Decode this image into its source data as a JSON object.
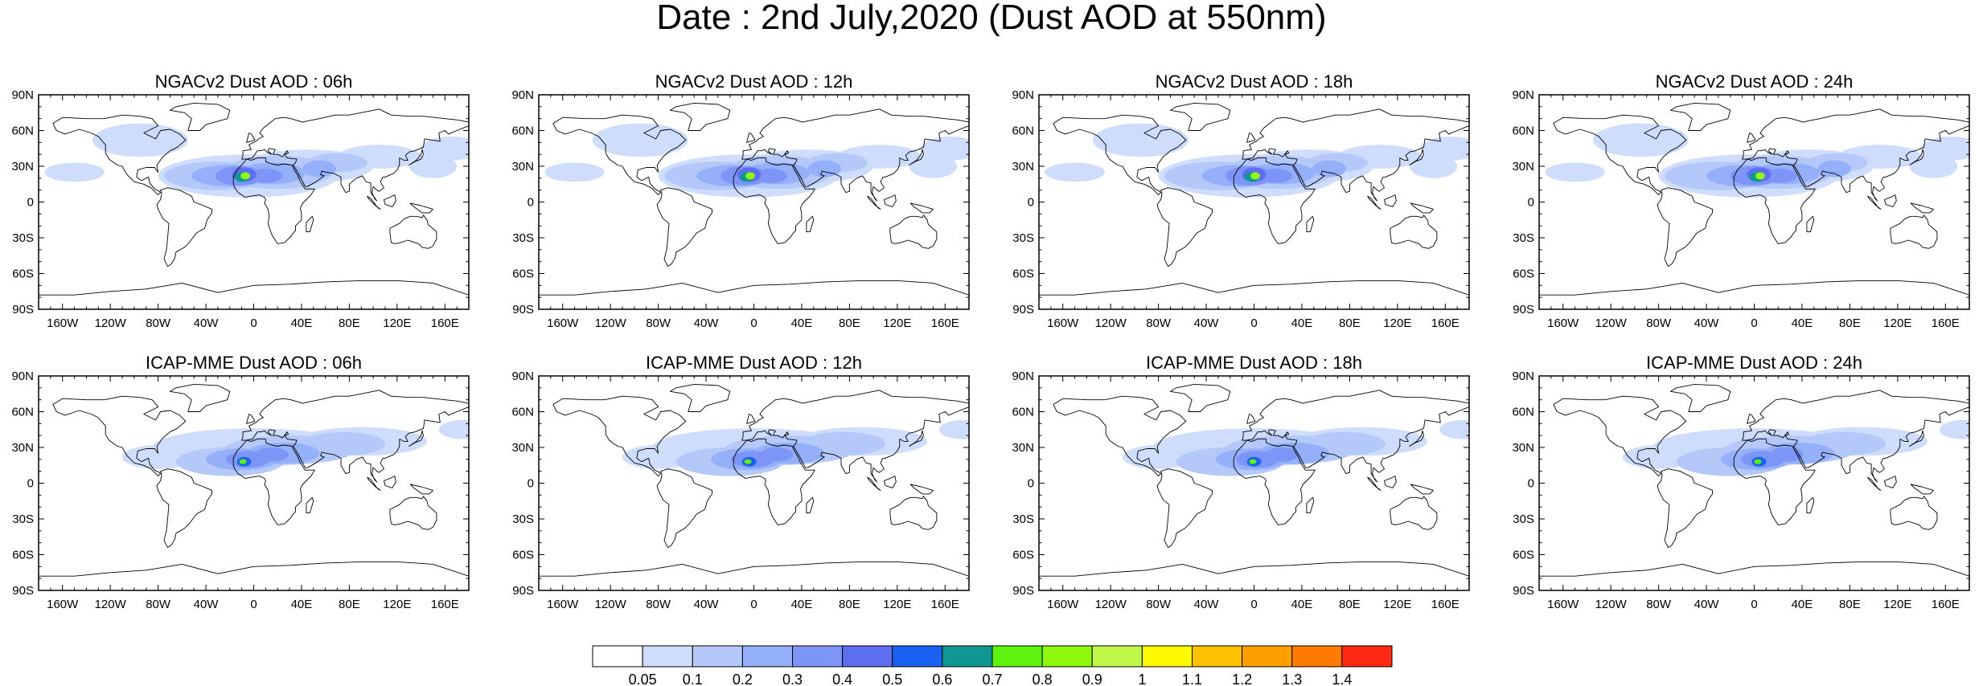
{
  "title": "Date : 2nd July,2020 (Dust AOD at 550nm)",
  "panels": [
    {
      "title": "NGACv2 Dust AOD : 06h",
      "model": "NGACv2",
      "hour": "06h",
      "variant": 0
    },
    {
      "title": "NGACv2 Dust AOD : 12h",
      "model": "NGACv2",
      "hour": "12h",
      "variant": 1
    },
    {
      "title": "NGACv2 Dust AOD : 18h",
      "model": "NGACv2",
      "hour": "18h",
      "variant": 2
    },
    {
      "title": "NGACv2 Dust AOD : 24h",
      "model": "NGACv2",
      "hour": "24h",
      "variant": 3
    },
    {
      "title": "ICAP-MME Dust AOD : 06h",
      "model": "ICAP-MME",
      "hour": "06h",
      "variant": 0
    },
    {
      "title": "ICAP-MME Dust AOD : 12h",
      "model": "ICAP-MME",
      "hour": "12h",
      "variant": 1
    },
    {
      "title": "ICAP-MME Dust AOD : 18h",
      "model": "ICAP-MME",
      "hour": "18h",
      "variant": 2
    },
    {
      "title": "ICAP-MME Dust AOD : 24h",
      "model": "ICAP-MME",
      "hour": "24h",
      "variant": 3
    }
  ],
  "axes": {
    "lon_ticks": [
      {
        "value": -160,
        "label": "160W"
      },
      {
        "value": -120,
        "label": "120W"
      },
      {
        "value": -80,
        "label": "80W"
      },
      {
        "value": -40,
        "label": "40W"
      },
      {
        "value": 0,
        "label": "0"
      },
      {
        "value": 40,
        "label": "40E"
      },
      {
        "value": 80,
        "label": "80E"
      },
      {
        "value": 120,
        "label": "120E"
      },
      {
        "value": 160,
        "label": "160E"
      }
    ],
    "lat_ticks": [
      {
        "value": 90,
        "label": "90N"
      },
      {
        "value": 60,
        "label": "60N"
      },
      {
        "value": 30,
        "label": "30N"
      },
      {
        "value": 0,
        "label": "0"
      },
      {
        "value": -30,
        "label": "30S"
      },
      {
        "value": -60,
        "label": "60S"
      },
      {
        "value": -90,
        "label": "90S"
      }
    ],
    "lon_range": [
      -180,
      180
    ],
    "lat_range": [
      -90,
      90
    ]
  },
  "colorbar": {
    "colors": [
      "#ffffff",
      "#cdddfb",
      "#b4c8fa",
      "#95b0fa",
      "#7d95f7",
      "#5e6ef0",
      "#1a62f2",
      "#0f9891",
      "#5ef20f",
      "#8ef80f",
      "#c0f94a",
      "#fffa00",
      "#ffc000",
      "#ffa000",
      "#ff7a00",
      "#ff2a14"
    ],
    "labels": [
      "0.05",
      "0.1",
      "0.2",
      "0.3",
      "0.4",
      "0.5",
      "0.6",
      "0.7",
      "0.8",
      "0.9",
      "1",
      "1.1",
      "1.2",
      "1.3",
      "1.4"
    ]
  }
}
